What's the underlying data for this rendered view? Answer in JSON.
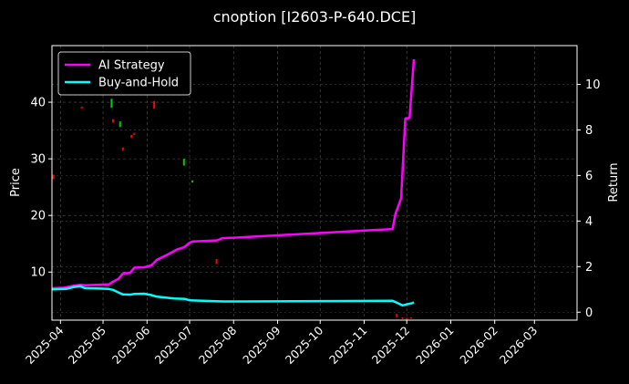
{
  "chart_data": {
    "type": "line",
    "title": "cnoption [I2603-P-640.DCE]",
    "xlabel": "",
    "ylabel_left": "Price",
    "ylabel_right": "Return",
    "x_range": [
      "2025-03-26",
      "2026-03-31"
    ],
    "x_ticks": [
      "2025-04",
      "2025-05",
      "2025-06",
      "2025-07",
      "2025-08",
      "2025-09",
      "2025-10",
      "2025-11",
      "2025-12",
      "2026-01",
      "2026-02",
      "2026-03"
    ],
    "ylim_left": [
      1.5,
      50
    ],
    "yticks_left": [
      10,
      20,
      30,
      40
    ],
    "ylim_right": [
      -0.35,
      11.7
    ],
    "yticks_right": [
      0,
      2,
      4,
      6,
      8,
      10
    ],
    "grid": true,
    "legend_position": "top-left",
    "series": [
      {
        "name": "AI Strategy",
        "axis": "right",
        "color": "#ff00ff",
        "points": [
          [
            "2025-03-26",
            1.05
          ],
          [
            "2025-04-03",
            1.07
          ],
          [
            "2025-04-10",
            1.16
          ],
          [
            "2025-04-15",
            1.2
          ],
          [
            "2025-04-18",
            1.18
          ],
          [
            "2025-05-05",
            1.22
          ],
          [
            "2025-05-08",
            1.34
          ],
          [
            "2025-05-12",
            1.47
          ],
          [
            "2025-05-15",
            1.7
          ],
          [
            "2025-05-20",
            1.72
          ],
          [
            "2025-05-23",
            1.95
          ],
          [
            "2025-05-30",
            1.97
          ],
          [
            "2025-06-04",
            2.05
          ],
          [
            "2025-06-08",
            2.3
          ],
          [
            "2025-06-12",
            2.42
          ],
          [
            "2025-06-16",
            2.55
          ],
          [
            "2025-06-22",
            2.75
          ],
          [
            "2025-06-27",
            2.85
          ],
          [
            "2025-07-01",
            3.05
          ],
          [
            "2025-07-03",
            3.1
          ],
          [
            "2025-07-20",
            3.15
          ],
          [
            "2025-07-24",
            3.25
          ],
          [
            "2025-08-01",
            3.27
          ],
          [
            "2025-11-21",
            3.65
          ],
          [
            "2025-11-23",
            4.3
          ],
          [
            "2025-11-27",
            5.0
          ],
          [
            "2025-11-30",
            8.5
          ],
          [
            "2025-12-03",
            8.52
          ],
          [
            "2025-12-06",
            11.1
          ]
        ]
      },
      {
        "name": "Buy-and-Hold",
        "axis": "right",
        "color": "#00ffff",
        "points": [
          [
            "2025-03-26",
            1.0
          ],
          [
            "2025-04-05",
            1.02
          ],
          [
            "2025-04-10",
            1.1
          ],
          [
            "2025-04-15",
            1.14
          ],
          [
            "2025-04-18",
            1.06
          ],
          [
            "2025-05-05",
            1.02
          ],
          [
            "2025-05-08",
            0.98
          ],
          [
            "2025-05-12",
            0.86
          ],
          [
            "2025-05-15",
            0.78
          ],
          [
            "2025-05-20",
            0.77
          ],
          [
            "2025-05-23",
            0.8
          ],
          [
            "2025-05-30",
            0.81
          ],
          [
            "2025-06-04",
            0.75
          ],
          [
            "2025-06-08",
            0.68
          ],
          [
            "2025-06-20",
            0.6
          ],
          [
            "2025-06-28",
            0.58
          ],
          [
            "2025-07-01",
            0.52
          ],
          [
            "2025-07-10",
            0.5
          ],
          [
            "2025-07-25",
            0.47
          ],
          [
            "2025-08-05",
            0.47
          ],
          [
            "2025-11-21",
            0.5
          ],
          [
            "2025-11-25",
            0.39
          ],
          [
            "2025-11-28",
            0.3
          ],
          [
            "2025-12-02",
            0.36
          ],
          [
            "2025-12-05",
            0.4
          ],
          [
            "2025-12-06",
            0.44
          ]
        ]
      }
    ],
    "candles": {
      "axis": "left",
      "up_color": "#00cc00",
      "down_color": "#ff0000",
      "items": [
        {
          "date": "2025-03-27",
          "low": 26.4,
          "high": 27.2,
          "dir": "down"
        },
        {
          "date": "2025-04-16",
          "low": 38.9,
          "high": 39.2,
          "dir": "down"
        },
        {
          "date": "2025-05-07",
          "low": 39.0,
          "high": 40.6,
          "dir": "up"
        },
        {
          "date": "2025-05-08",
          "low": 36.4,
          "high": 37.0,
          "dir": "down"
        },
        {
          "date": "2025-05-13",
          "low": 35.6,
          "high": 36.6,
          "dir": "up"
        },
        {
          "date": "2025-05-15",
          "low": 31.5,
          "high": 32.0,
          "dir": "down"
        },
        {
          "date": "2025-05-21",
          "low": 33.7,
          "high": 34.2,
          "dir": "down"
        },
        {
          "date": "2025-05-23",
          "low": 34.2,
          "high": 34.6,
          "dir": "down"
        },
        {
          "date": "2025-06-06",
          "low": 38.9,
          "high": 40.2,
          "dir": "down"
        },
        {
          "date": "2025-06-27",
          "low": 28.8,
          "high": 30.0,
          "dir": "up"
        },
        {
          "date": "2025-07-03",
          "low": 25.8,
          "high": 26.2,
          "dir": "up"
        },
        {
          "date": "2025-07-20",
          "low": 11.4,
          "high": 12.3,
          "dir": "down"
        },
        {
          "date": "2025-11-24",
          "low": 2.0,
          "high": 2.6,
          "dir": "down"
        },
        {
          "date": "2025-11-28",
          "low": 1.7,
          "high": 2.0,
          "dir": "down"
        },
        {
          "date": "2025-12-01",
          "low": 1.6,
          "high": 1.9,
          "dir": "down"
        },
        {
          "date": "2025-12-04",
          "low": 1.8,
          "high": 2.0,
          "dir": "down"
        }
      ]
    }
  }
}
